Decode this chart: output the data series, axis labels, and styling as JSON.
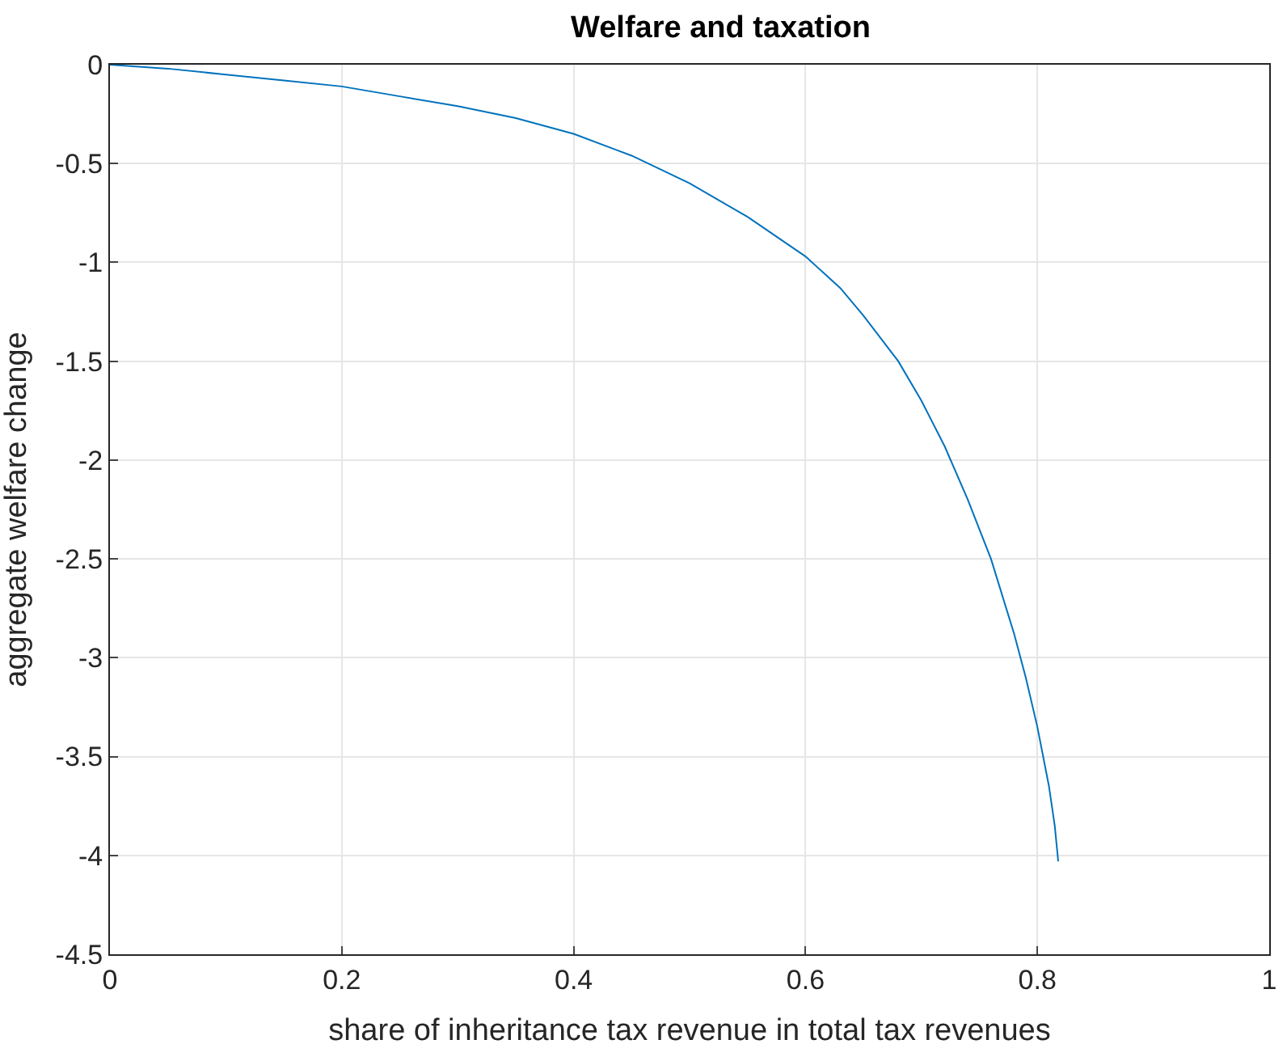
{
  "chart_data": {
    "type": "line",
    "title": "Welfare and taxation",
    "xlabel": "share of inheritance tax revenue in total tax revenues",
    "ylabel": "aggregate welfare change",
    "x": [
      0,
      0.05,
      0.1,
      0.15,
      0.2,
      0.25,
      0.3,
      0.35,
      0.4,
      0.45,
      0.5,
      0.55,
      0.6,
      0.63,
      0.65,
      0.68,
      0.7,
      0.72,
      0.74,
      0.76,
      0.78,
      0.79,
      0.8,
      0.81,
      0.815,
      0.818
    ],
    "series": [
      {
        "color": "#0072bd",
        "values": [
          0,
          -0.02,
          -0.05,
          -0.08,
          -0.11,
          -0.16,
          -0.21,
          -0.27,
          -0.35,
          -0.46,
          -0.6,
          -0.77,
          -0.97,
          -1.13,
          -1.27,
          -1.5,
          -1.7,
          -1.93,
          -2.2,
          -2.5,
          -2.88,
          -3.1,
          -3.35,
          -3.65,
          -3.85,
          -4.03
        ]
      }
    ],
    "xlim": [
      0,
      1
    ],
    "ylim": [
      -4.5,
      0
    ],
    "xticks": [
      0,
      0.2,
      0.4,
      0.6,
      0.8,
      1
    ],
    "yticks": [
      -4.5,
      -4,
      -3.5,
      -3,
      -2.5,
      -2,
      -1.5,
      -1,
      -0.5,
      0
    ],
    "grid": true,
    "legend": false,
    "marker": "none",
    "line_style": "solid"
  }
}
